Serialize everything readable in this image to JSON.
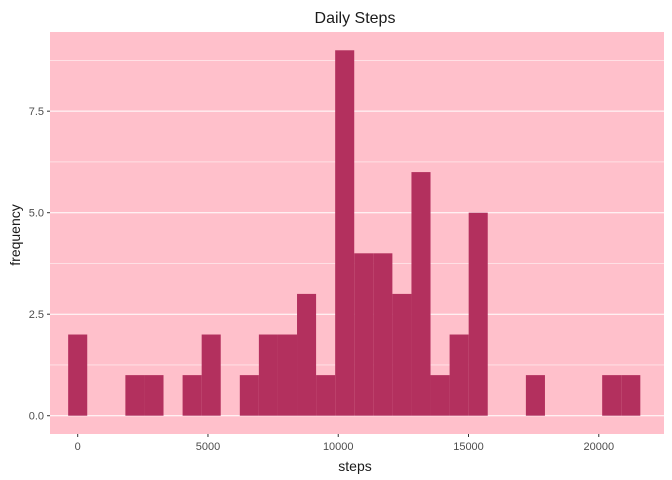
{
  "chart_data": {
    "type": "bar",
    "title": "Daily Steps",
    "xlabel": "steps",
    "ylabel": "frequency",
    "xlim": [
      -1063,
      22503
    ],
    "ylim": [
      -0.45,
      9.45
    ],
    "xticks": [
      0,
      5000,
      10000,
      15000,
      20000
    ],
    "xtick_labels": [
      "0",
      "5000",
      "10000",
      "15000",
      "20000"
    ],
    "yticks": [
      0,
      2.5,
      5,
      7.5
    ],
    "ytick_labels": [
      "0.0",
      "2.5",
      "5.0",
      "7.5"
    ],
    "y_minor_ticks": [
      1.25,
      3.75,
      6.25,
      8.75
    ],
    "grid": true,
    "bin_width": 732,
    "bin_start": -366,
    "counts": [
      2,
      0,
      0,
      1,
      1,
      0,
      1,
      2,
      0,
      1,
      2,
      2,
      3,
      1,
      9,
      4,
      4,
      3,
      6,
      1,
      2,
      5,
      0,
      0,
      1,
      0,
      0,
      0,
      1,
      1
    ],
    "colors": {
      "panel": "#ffc0cb",
      "bar": "#b3305e",
      "grid": "#ffffff"
    }
  }
}
